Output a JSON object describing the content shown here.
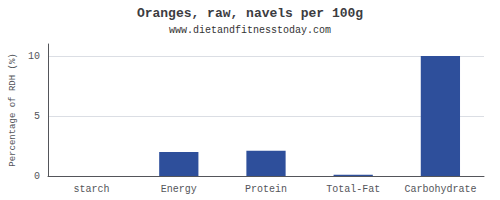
{
  "chart_data": {
    "type": "bar",
    "title": "Oranges, raw, navels per 100g",
    "subtitle": "www.dietandfitnesstoday.com",
    "categories": [
      "starch",
      "Energy",
      "Protein",
      "Total-Fat",
      "Carbohydrate"
    ],
    "values": [
      0,
      2.0,
      2.1,
      0.1,
      10.0
    ],
    "color": "#2e4f9b",
    "ylabel": "Percentage of RDH (%)",
    "ylim": [
      0,
      11
    ],
    "yticks": [
      0,
      5,
      10
    ],
    "grid": true
  }
}
